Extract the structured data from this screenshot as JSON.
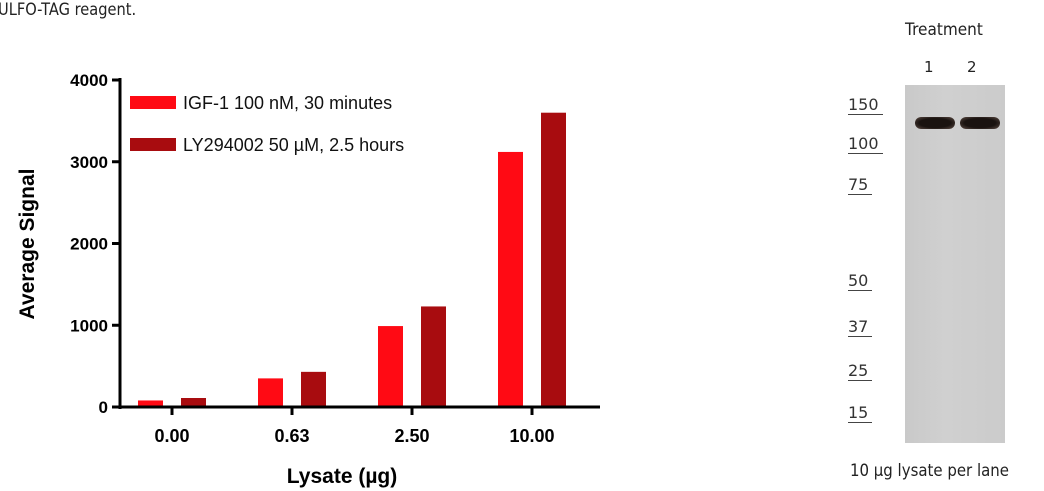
{
  "top_caption": "ULFO-TAG reagent.",
  "chart_data": {
    "type": "bar",
    "categories": [
      "0.00",
      "0.63",
      "2.50",
      "10.00"
    ],
    "series": [
      {
        "name": "IGF-1 100 nM, 30 minutes",
        "values": [
          80,
          350,
          990,
          3120
        ],
        "color": "#ff0a14"
      },
      {
        "name": "LY294002 50 µM, 2.5 hours",
        "values": [
          110,
          430,
          1230,
          3600
        ],
        "color": "#a80c0f"
      }
    ],
    "title": "",
    "xlabel": "Lysate (µg)",
    "ylabel": "Average Signal",
    "ylim": [
      0,
      4000
    ],
    "yticks": [
      0,
      1000,
      2000,
      3000,
      4000
    ],
    "legend": "top-left",
    "grid": false
  },
  "blot": {
    "treatment_label": "Treatment",
    "lanes": [
      "1",
      "2"
    ],
    "markers": [
      "150",
      "100",
      "75",
      "50",
      "37",
      "25",
      "15"
    ],
    "footer": "10 µg lysate per lane"
  }
}
